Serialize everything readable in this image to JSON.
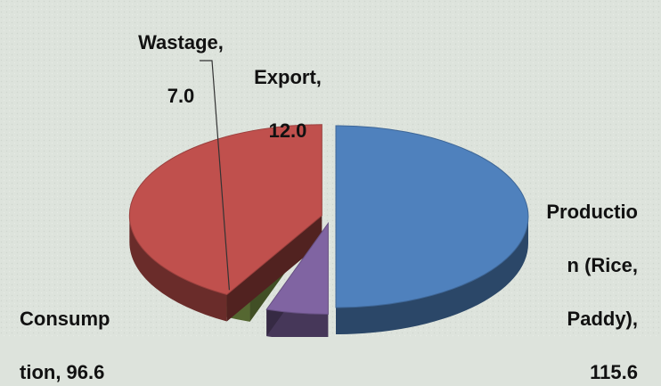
{
  "chart_data": {
    "type": "pie",
    "style": "3d-exploded",
    "title": "",
    "slices": [
      {
        "name": "Production (Rice, Paddy)",
        "value": 115.6,
        "color": "#4f81bd",
        "label_lines": [
          "Productio",
          "n (Rice,",
          "Paddy),",
          "115.6"
        ]
      },
      {
        "name": "Export",
        "value": 12.0,
        "color": "#8064a2",
        "label_lines": [
          "Export,",
          "12.0"
        ]
      },
      {
        "name": "Wastage",
        "value": 7.0,
        "color": "#9bbb59",
        "label_lines": [
          "Wastage,",
          "7.0"
        ]
      },
      {
        "name": "Consumption",
        "value": 96.6,
        "color": "#c0504d",
        "label_lines": [
          "Consump",
          "tion, 96.6"
        ]
      }
    ],
    "legend": "none"
  }
}
